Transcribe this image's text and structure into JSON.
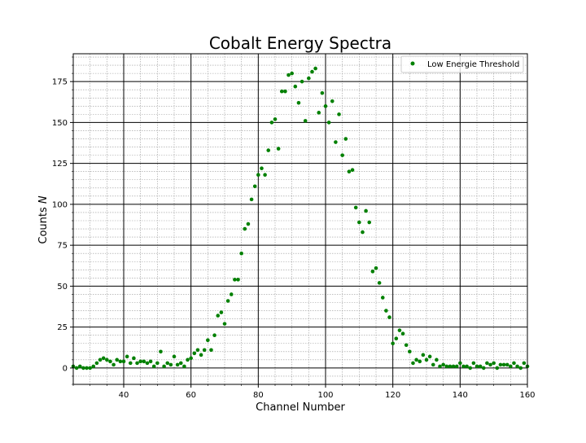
{
  "chart_data": {
    "type": "scatter",
    "title": "Cobalt Energy Spectra",
    "xlabel": "Channel Number",
    "ylabel_prefix": "Counts ",
    "ylabel_var": "N",
    "xlim": [
      25,
      160
    ],
    "ylim": [
      -10,
      192
    ],
    "xticks": [
      40,
      60,
      80,
      100,
      120,
      140,
      160
    ],
    "yticks": [
      0,
      25,
      50,
      75,
      100,
      125,
      150,
      175
    ],
    "grid": {
      "major": true,
      "minor": true
    },
    "legend_position": "top-right",
    "marker_color": "#008000",
    "series": [
      {
        "name": "Low Energie Threshold",
        "x": [
          25,
          26,
          27,
          28,
          29,
          30,
          31,
          32,
          33,
          34,
          35,
          36,
          37,
          38,
          39,
          40,
          41,
          42,
          43,
          44,
          45,
          46,
          47,
          48,
          49,
          50,
          51,
          52,
          53,
          54,
          55,
          56,
          57,
          58,
          59,
          60,
          61,
          62,
          63,
          64,
          65,
          66,
          67,
          68,
          69,
          70,
          71,
          72,
          73,
          74,
          75,
          76,
          77,
          78,
          79,
          80,
          81,
          82,
          83,
          84,
          85,
          86,
          87,
          88,
          89,
          90,
          91,
          92,
          93,
          94,
          95,
          96,
          97,
          98,
          99,
          100,
          101,
          102,
          103,
          104,
          105,
          106,
          107,
          108,
          109,
          110,
          111,
          112,
          113,
          114,
          115,
          116,
          117,
          118,
          119,
          120,
          121,
          122,
          123,
          124,
          125,
          126,
          127,
          128,
          129,
          130,
          131,
          132,
          133,
          134,
          135,
          136,
          137,
          138,
          139,
          140,
          141,
          142,
          143,
          144,
          145,
          146,
          147,
          148,
          149,
          150,
          151,
          152,
          153,
          154,
          155,
          156,
          157,
          158,
          159,
          160
        ],
        "y": [
          1,
          0,
          1,
          0,
          0,
          0,
          1,
          3,
          5,
          6,
          5,
          4,
          2,
          5,
          4,
          4,
          7,
          3,
          6,
          3,
          4,
          4,
          3,
          4,
          1,
          3,
          10,
          1,
          3,
          2,
          7,
          2,
          3,
          1,
          5,
          6,
          9,
          11,
          8,
          11,
          17,
          11,
          20,
          32,
          34,
          27,
          41,
          45,
          54,
          54,
          70,
          85,
          88,
          103,
          111,
          118,
          122,
          118,
          133,
          150,
          152,
          134,
          169,
          169,
          179,
          180,
          172,
          162,
          175,
          151,
          177,
          181,
          183,
          156,
          168,
          160,
          150,
          163,
          138,
          155,
          130,
          140,
          120,
          121,
          98,
          89,
          83,
          96,
          89,
          59,
          61,
          52,
          43,
          35,
          31,
          15,
          18,
          23,
          21,
          14,
          10,
          3,
          5,
          4,
          8,
          5,
          7,
          2,
          5,
          1,
          2,
          1,
          1,
          1,
          1,
          3,
          1,
          1,
          0,
          3,
          1,
          1,
          0,
          3,
          2,
          3,
          0,
          2,
          2,
          2,
          1,
          3,
          1,
          0,
          3,
          1
        ]
      }
    ]
  }
}
